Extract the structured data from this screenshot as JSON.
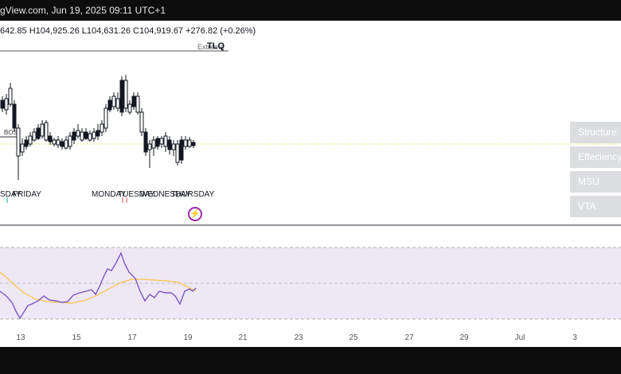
{
  "header": {
    "title": "gView.com, Jun 19, 2025 09:11 UTC+1"
  },
  "ohlc": {
    "open": "642.85",
    "high_label": "H",
    "high": "104,925.26",
    "low_label": "L",
    "low": "104,631.26",
    "close_label": "C",
    "close": "104,919.67",
    "change": "+276.82 (+0.26%)"
  },
  "annotations": {
    "tlq": "TLQ",
    "extreme": "Extreme",
    "bos": "BOS",
    "day_labels": [
      "SDAY",
      "FRIDAY",
      "MONDAY",
      "TUESDAY",
      "WEDNESDAY",
      "THURSDAY"
    ]
  },
  "side_buttons": [
    "Structure",
    "Effeciency",
    "MSU",
    "VTA"
  ],
  "xaxis_labels": [
    "13",
    "15",
    "17",
    "19",
    "21",
    "23",
    "25",
    "27",
    "29",
    "Jul",
    "3"
  ],
  "colors": {
    "candle_body": "#131722",
    "rsi_line": "#7e57c2",
    "rsi_ma": "#f9c349",
    "rsi_band": "#ede7f6",
    "signal": "#9c27b0"
  },
  "icons": {
    "alert": "lightning-bolt-icon"
  }
}
